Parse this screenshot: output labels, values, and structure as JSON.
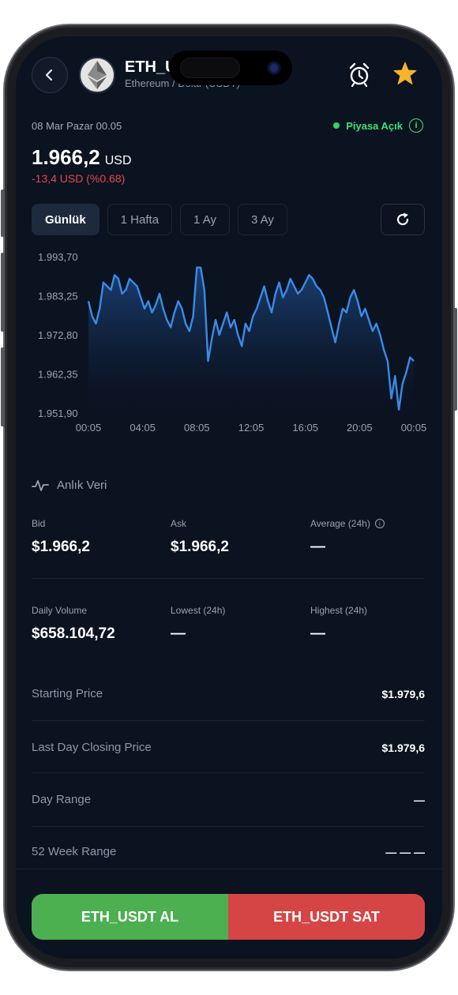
{
  "header": {
    "pair_title": "ETH_USDT",
    "pair_subtitle": "Ethereum / Dolar (USDT)"
  },
  "market": {
    "date": "08 Mar Pazar 00.05",
    "status": "Piyasa Açık",
    "status_color": "#3ee07a"
  },
  "price": {
    "value": "1.966,2",
    "currency": "USD",
    "change": "-13,4 USD (%0.68)",
    "change_color": "#e5484d"
  },
  "tabs": [
    {
      "label": "Günlük",
      "active": true
    },
    {
      "label": "1 Hafta",
      "active": false
    },
    {
      "label": "1 Ay",
      "active": false
    },
    {
      "label": "3 Ay",
      "active": false
    }
  ],
  "chart_data": {
    "type": "area",
    "title": "",
    "xlabel": "",
    "ylabel": "",
    "ylim": [
      1951.9,
      1993.7
    ],
    "y_ticks": [
      "1.993,70",
      "1.983,25",
      "1.972,80",
      "1.962,35",
      "1.951,90"
    ],
    "x_ticks": [
      "00:05",
      "04:05",
      "08:05",
      "12:05",
      "16:05",
      "20:05",
      "00:05"
    ],
    "series": [
      {
        "values": [
          1982,
          1978,
          1976,
          1980,
          1987,
          1986,
          1985,
          1989,
          1988,
          1984,
          1985,
          1988,
          1987,
          1986,
          1983,
          1980,
          1982,
          1979,
          1981,
          1984,
          1980,
          1977,
          1975,
          1979,
          1982,
          1980,
          1976,
          1974,
          1978,
          1991,
          1991,
          1985,
          1966,
          1972,
          1977,
          1973,
          1976,
          1979,
          1975,
          1977,
          1973,
          1970,
          1976,
          1974,
          1978,
          1980,
          1983,
          1986,
          1982,
          1979,
          1984,
          1987,
          1983,
          1985,
          1988,
          1986,
          1984,
          1985,
          1987,
          1989,
          1988,
          1986,
          1985,
          1983,
          1979,
          1975,
          1971,
          1976,
          1980,
          1979,
          1983,
          1985,
          1982,
          1978,
          1980,
          1977,
          1974,
          1976,
          1973,
          1969,
          1966,
          1956,
          1962,
          1953,
          1960,
          1963,
          1967,
          1966
        ]
      }
    ],
    "line_color": "#3a8be8",
    "grid": false
  },
  "section": {
    "title": "Anlık Veri"
  },
  "stats": {
    "bid_label": "Bid",
    "bid_value": "$1.966,2",
    "ask_label": "Ask",
    "ask_value": "$1.966,2",
    "avg_label": "Average (24h)",
    "avg_value": "—",
    "vol_label": "Daily Volume",
    "vol_value": "$658.104,72",
    "low_label": "Lowest (24h)",
    "low_value": "—",
    "high_label": "Highest (24h)",
    "high_value": "—"
  },
  "rows": [
    {
      "label": "Starting Price",
      "value": "$1.979,6"
    },
    {
      "label": "Last Day Closing Price",
      "value": "$1.979,6"
    },
    {
      "label": "Day Range",
      "value": "—"
    },
    {
      "label": "52 Week Range",
      "value": "— — —"
    }
  ],
  "actions": {
    "buy_label": "ETH_USDT AL",
    "sell_label": "ETH_USDT SAT",
    "buy_color": "#4caf50",
    "sell_color": "#d64545"
  }
}
